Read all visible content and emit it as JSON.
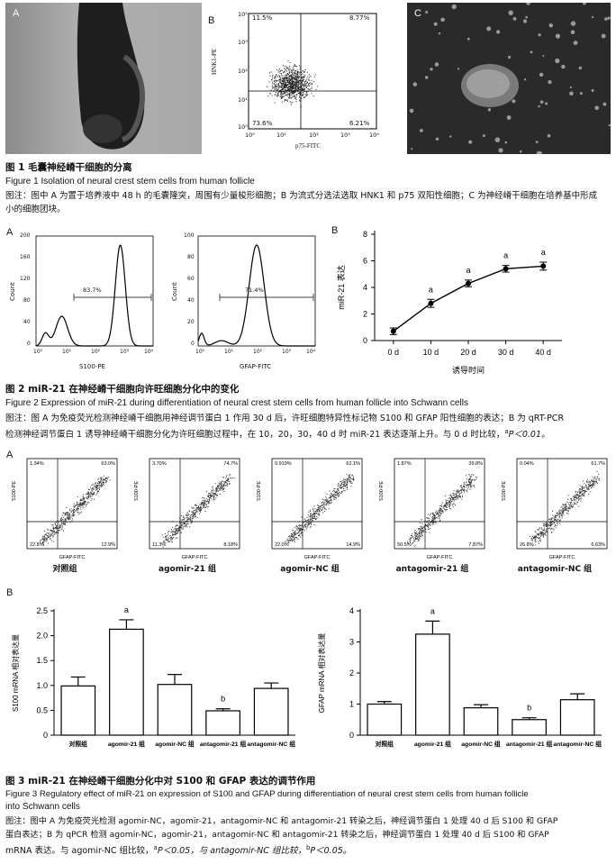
{
  "fig1": {
    "panel_a": {
      "letter": "A"
    },
    "panel_b": {
      "letter": "B",
      "y_label": "HNK1-PE",
      "x_label": "p75-FITC",
      "quadrant_ul": "11.5%",
      "quadrant_ur": "8.77%",
      "quadrant_ll": "73.6%",
      "quadrant_lr": "6.21%",
      "y_ticks": [
        "10⁴",
        "10³",
        "10²",
        "10¹",
        "10⁰"
      ],
      "x_ticks": [
        "10⁰",
        "10¹",
        "10²",
        "10³",
        "10⁴"
      ]
    },
    "panel_c": {
      "letter": "C"
    },
    "title": "图 1   毛囊神经嵴干细胞的分离",
    "title_en": "Figure 1   Isolation of neural crest stem cells from human follicle",
    "note": "图注：图中 A 为置于培养液中 48 h 的毛囊隆突，周围有少量梭形细胞；B 为流式分选法选取 HNK1 和 p75 双阳性细胞；C 为神经嵴干细胞在培养基中形成小的细胞团块。"
  },
  "fig2": {
    "panel_a_letter": "A",
    "panel_b_letter": "B",
    "hist1": {
      "x_label": "S100-PE",
      "y_label": "Count",
      "percent": "83.7%",
      "y_ticks": [
        "200",
        "160",
        "120",
        "80",
        "40",
        "0"
      ],
      "x_ticks": [
        "10⁰",
        "10¹",
        "10²",
        "10³",
        "10⁴"
      ]
    },
    "hist2": {
      "x_label": "GFAP-FITC",
      "y_label": "Count",
      "percent": "71.4%",
      "y_ticks": [
        "100",
        "80",
        "60",
        "40",
        "20",
        "0"
      ],
      "x_ticks": [
        "10⁰",
        "10¹",
        "10²",
        "10³",
        "10⁴"
      ]
    },
    "line_sig": "a",
    "title": "图 2   miR-21 在神经嵴干细胞向许旺细胞分化中的变化",
    "title_en": "Figure 2   Expression of miR-21 during differentiation of neural crest stem cells from human follicle into Schwann cells",
    "note1": "图注：图 A 为免疫荧光检测神经嵴干细胞用神经调节蛋白 1 作用 30 d 后，许旺细胞特异性标记物 S100 和 GFAP 阳性细胞的表达；B 为 qRT-PCR",
    "note2_main": "检测神经调节蛋白 1 诱导神经嵴干细胞分化为许旺细胞过程中，在 10，20，30，40 d 时 miR-21 表达逐渐上升。与 0 d 时比较，",
    "note2_sup": "a",
    "note2_tail": "P＜0.01。"
  },
  "fig3": {
    "panel_a_letter": "A",
    "panel_b_letter": "B",
    "scatter_x_label": "GFAP-FITC",
    "scatter_y_label": "S100-PE",
    "scatters": [
      {
        "group": "对照组",
        "ul": "1.34%",
        "ur": "63.0%",
        "ll": "22.8%",
        "lr": "12.9%"
      },
      {
        "group": "agomir-21 组",
        "ul": "3.70%",
        "ur": "74.7%",
        "ll": "11.3%",
        "lr": "8.18%"
      },
      {
        "group": "agomir-NC 组",
        "ul": "0.919%",
        "ur": "62.1%",
        "ll": "22.0%",
        "lr": "14.9%"
      },
      {
        "group": "antagomir-21 组",
        "ul": "1.87%",
        "ur": "39.8%",
        "ll": "50.5%",
        "lr": "7.87%"
      },
      {
        "group": "antagomir-NC 组",
        "ul": "0.04%",
        "ur": "61.7%",
        "ll": "26.8%",
        "lr": "6.63%"
      }
    ],
    "title": "图 3   miR-21 在神经嵴干细胞分化中对 S100 和 GFAP 表达的调节作用",
    "title_en_1": "Figure 3   Regulatory effect of miR-21 on expression of S100 and GFAP during differentiation of neural crest stem cells from human follicle",
    "title_en_2": "into Schwann cells",
    "note1": "图注：图中 A 为免疫荧光检测 agomir-NC，agomir-21，antagomir-NC 和 antagomir-21 转染之后，神经调节蛋白 1 处理 40 d 后 S100 和 GFAP",
    "note2": "蛋白表达；B 为 qPCR 检测 agomir-NC，agomir-21，antagomir-NC 和 antagomir-21 转染之后，神经调节蛋白 1 处理 40 d 后 S100 和 GFAP",
    "note3_a": "mRNA 表达。与 agomir-NC 组比较，",
    "note3_sup1": "a",
    "note3_b": "P＜0.05，与 antagomir-NC 组比较，",
    "note3_sup2": "b",
    "note3_c": "P＜0.05。"
  },
  "chart_data": [
    {
      "type": "line",
      "x": [
        "0 d",
        "10 d",
        "20 d",
        "30 d",
        "40 d"
      ],
      "values": [
        0.7,
        2.8,
        4.3,
        5.4,
        5.6
      ],
      "errors": [
        0.25,
        0.3,
        0.25,
        0.25,
        0.3
      ],
      "sig": [
        "",
        "a",
        "a",
        "a",
        "a"
      ],
      "xlabel": "诱导时间",
      "ylabel": "miR-21 表达",
      "ylim": [
        0,
        8
      ],
      "yticks": [
        0,
        2,
        4,
        6,
        8
      ],
      "color": "#000000"
    },
    {
      "type": "bar",
      "categories": [
        "对照组",
        "agomir-21 组",
        "agomir-NC 组",
        "antagomir-21 组",
        "antagomir-NC 组"
      ],
      "values": [
        0.99,
        2.13,
        1.02,
        0.49,
        0.94
      ],
      "errors": [
        0.18,
        0.19,
        0.2,
        0.04,
        0.11
      ],
      "sig": [
        "",
        "a",
        "",
        "b",
        ""
      ],
      "ylabel": "S100 mRNA 相对表达量",
      "ylim": [
        0,
        2.5
      ],
      "yticks": [
        "0",
        "0.5",
        "1.0",
        "1.5",
        "2.0",
        "2.5"
      ]
    },
    {
      "type": "bar",
      "categories": [
        "对照组",
        "agomir-21 组",
        "agomir-NC 组",
        "antagomir-21 组",
        "antagomir-NC 组"
      ],
      "values": [
        1.0,
        3.25,
        0.88,
        0.5,
        1.14
      ],
      "errors": [
        0.08,
        0.42,
        0.1,
        0.06,
        0.19
      ],
      "sig": [
        "",
        "a",
        "",
        "b",
        ""
      ],
      "ylabel": "GFAP mRNA 相对表达量",
      "ylim": [
        0,
        4
      ],
      "yticks": [
        "0",
        "1",
        "2",
        "3",
        "4"
      ]
    }
  ]
}
